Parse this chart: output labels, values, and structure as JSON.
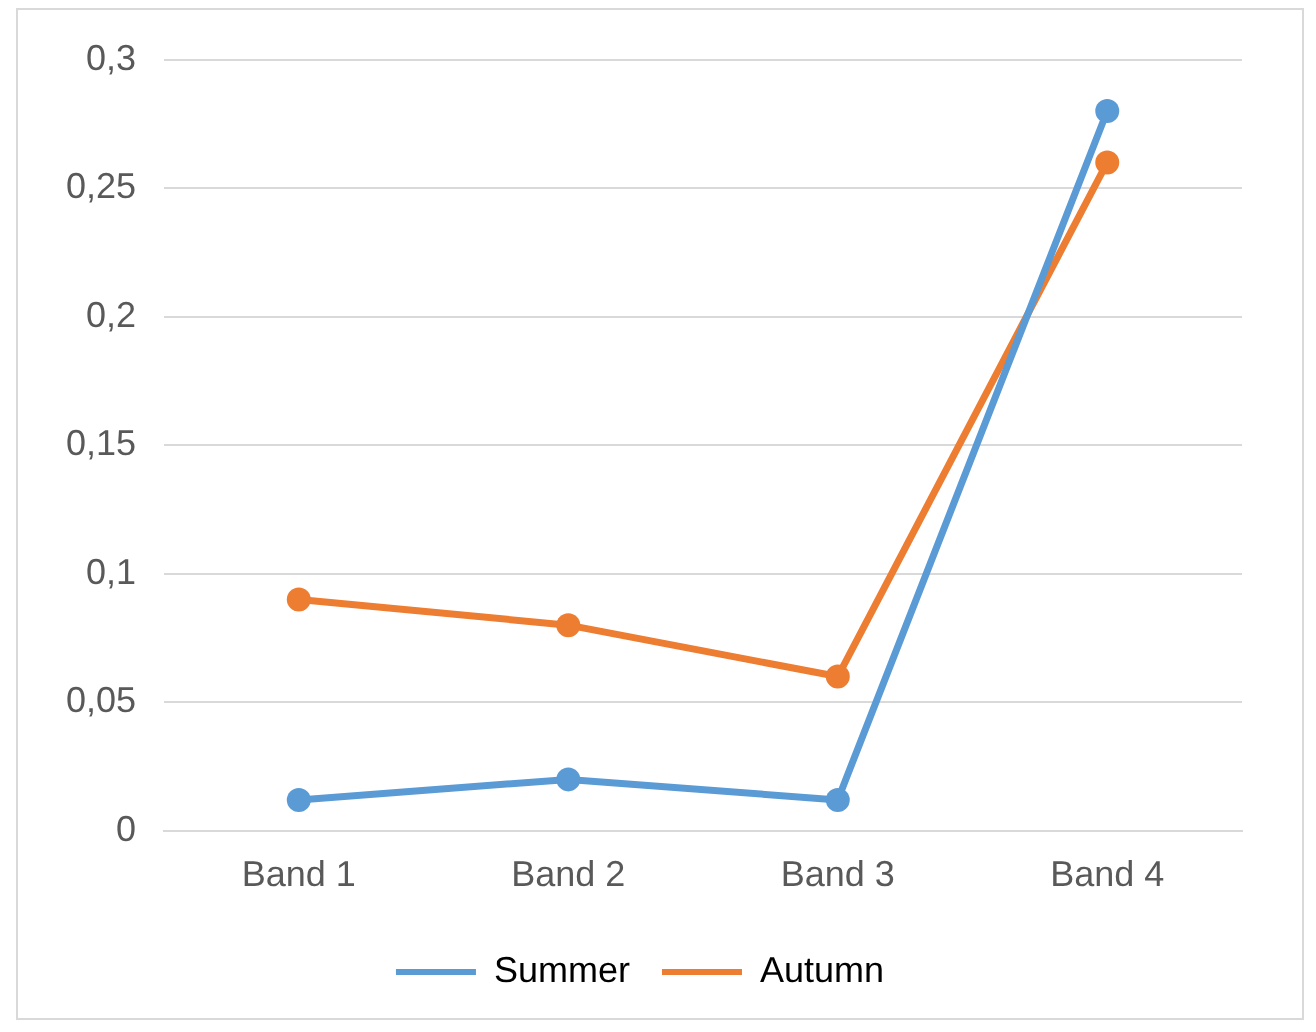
{
  "chart_data": {
    "type": "line",
    "categories": [
      "Band 1",
      "Band 2",
      "Band 3",
      "Band 4"
    ],
    "series": [
      {
        "name": "Summer",
        "color": "#5b9bd5",
        "values": [
          0.012,
          0.02,
          0.012,
          0.28
        ]
      },
      {
        "name": "Autumn",
        "color": "#ed7d31",
        "values": [
          0.09,
          0.08,
          0.06,
          0.26
        ]
      }
    ],
    "ylim": [
      0,
      0.3
    ],
    "yticks": [
      0,
      {
        "value": 0.05,
        "label": "0,05"
      },
      {
        "value": 0.1,
        "label": "0,1"
      },
      {
        "value": 0.15,
        "label": "0,15"
      },
      {
        "value": 0.2,
        "label": "0,2"
      },
      {
        "value": 0.25,
        "label": "0,25"
      },
      {
        "value": 0.3,
        "label": "0,3"
      }
    ],
    "grid": "y",
    "legend": "bottom",
    "marker": "circle",
    "line_style": "solid"
  }
}
